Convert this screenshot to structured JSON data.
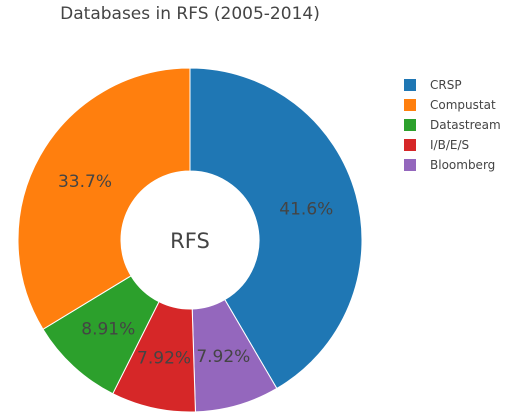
{
  "chart_data": {
    "type": "pie",
    "title": "Databases in RFS (2005-2014)",
    "center_label": "RFS",
    "hole": true,
    "legend_position": "top-right",
    "slices": [
      {
        "label": "CRSP",
        "value": 41.6,
        "text": "41.6%",
        "color": "#1f77b4"
      },
      {
        "label": "Compustat",
        "value": 33.7,
        "text": "33.7%",
        "color": "#ff7f0e"
      },
      {
        "label": "Datastream",
        "value": 8.91,
        "text": "8.91%",
        "color": "#2ca02c"
      },
      {
        "label": "I/B/E/S",
        "value": 7.92,
        "text": "7.92%",
        "color": "#d62728"
      },
      {
        "label": "Bloomberg",
        "value": 7.92,
        "text": "7.92%",
        "color": "#9467bd"
      }
    ],
    "slice_order": [
      "CRSP",
      "Bloomberg",
      "I/B/E/S",
      "Datastream",
      "Compustat"
    ]
  }
}
